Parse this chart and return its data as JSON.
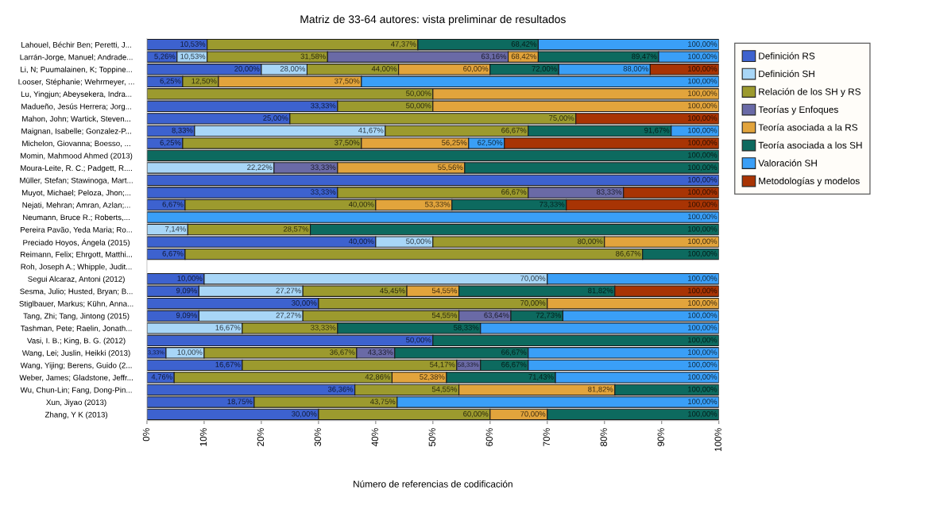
{
  "chart_data": {
    "type": "bar",
    "orientation": "horizontal",
    "title": "Matriz de 33-64 autores: vista preliminar de resultados",
    "xlabel": "Número de referencias de codificación",
    "categories": [
      "Lahouel, Béchir Ben; Peretti, J...",
      "Larrán-Jorge, Manuel; Andrade...",
      "Li, N; Puumalainen, K; Toppine...",
      "Looser, Stéphanie; Wehrmeyer, ...",
      "Lu, Yingjun; Abeysekera, Indra...",
      "Madueño, Jesús Herrera; Jorg...",
      "Mahon, John; Wartick, Steven...",
      "Maignan, Isabelle; Gonzalez-P...",
      "Michelon, Giovanna; Boesso, ...",
      "Momin, Mahmood Ahmed (2013)",
      "Moura-Leite, R. C.; Padgett, R....",
      "Müller, Stefan; Stawinoga, Mart...",
      "Muyot, Michael; Peloza, Jhon;...",
      "Nejati, Mehran; Amran, Azlan;...",
      "Neumann, Bruce R.; Roberts,...",
      "Pereira Pavão, Yeda Maria; Ro...",
      "Preciado Hoyos, Ángela (2015)",
      "Reimann, Felix; Ehrgott, Matthi...",
      "Roh, Joseph A.; Whipple, Judit...",
      "Segui Alcaraz, Antoni (2012)",
      "Sesma, Julio; Husted, Bryan; B...",
      "Stiglbauer, Markus; Kühn, Anna...",
      "Tang, Zhi; Tang, Jintong (2015)",
      "Tashman, Pete; Raelin, Jonath...",
      "Vasi, I. B.; King, B. G. (2012)",
      "Wang, Lei; Juslin, Heikki (2013)",
      "Wang, Yijing; Berens, Guido (2...",
      "Weber, James; Gladstone, Jeffr...",
      "Wu, Chun-Lin; Fang, Dong-Pin...",
      "Xun, Jiyao (2013)",
      "Zhang, Y K (2013)"
    ],
    "series": [
      {
        "name": "Definición RS",
        "color": "#3d62cf",
        "values": [
          10.53,
          5.26,
          20,
          6.25,
          null,
          33.33,
          25,
          8.33,
          6.25,
          null,
          null,
          100,
          33.33,
          6.67,
          null,
          null,
          40,
          6.67,
          null,
          10,
          9.09,
          30,
          9.09,
          null,
          50,
          3.33,
          16.67,
          4.76,
          36.36,
          18.75,
          30
        ],
        "base": [
          0,
          0,
          0,
          0,
          null,
          0,
          0,
          0,
          0,
          null,
          null,
          0,
          0,
          0,
          null,
          null,
          0,
          0,
          null,
          0,
          0,
          0,
          0,
          null,
          0,
          0,
          0,
          0,
          0,
          0,
          0
        ],
        "value_labels": [
          "10,53%",
          "5,26%",
          "20,00%",
          "6,25%",
          null,
          "33,33%",
          "25,00%",
          "8,33%",
          "6,25%",
          null,
          null,
          "100,00%",
          "33,33%",
          "6,67%",
          null,
          null,
          "40,00%",
          "6,67%",
          null,
          "10,00%",
          "9,09%",
          "30,00%",
          "9,09%",
          null,
          "50,00%",
          "3,33%",
          "16,67%",
          "4,76%",
          "36,36%",
          "18,75%",
          "30,00%"
        ]
      },
      {
        "name": "Definición SH",
        "color": "#a8d6f7",
        "values": [
          null,
          5.27,
          8,
          null,
          null,
          null,
          null,
          33.34,
          null,
          null,
          22.22,
          null,
          null,
          null,
          null,
          7.14,
          10,
          null,
          null,
          60,
          18.18,
          null,
          18.18,
          16.67,
          null,
          6.67,
          null,
          null,
          null,
          null,
          null
        ],
        "base": [
          null,
          5.26,
          20,
          null,
          null,
          null,
          null,
          8.33,
          null,
          null,
          0,
          null,
          null,
          null,
          null,
          0,
          40,
          null,
          null,
          10,
          9.09,
          null,
          9.09,
          0,
          null,
          3.33,
          null,
          null,
          null,
          null,
          null
        ],
        "value_labels": [
          null,
          "10,53%",
          "28,00%",
          null,
          null,
          null,
          null,
          "41,67%",
          null,
          null,
          "22,22%",
          null,
          null,
          null,
          null,
          "7,14%",
          "50,00%",
          null,
          null,
          "70,00%",
          "27,27%",
          null,
          "27,27%",
          "16,67%",
          null,
          "10,00%",
          null,
          null,
          null,
          null,
          null
        ]
      },
      {
        "name": "Relación de los SH y RS",
        "color": "#9c9a2e",
        "values": [
          36.84,
          21.05,
          16,
          6.25,
          50,
          16.67,
          50,
          25,
          31.25,
          null,
          null,
          null,
          33.34,
          33.33,
          null,
          21.43,
          30,
          80,
          null,
          null,
          18.18,
          40,
          27.28,
          16.66,
          null,
          26.67,
          37.5,
          38.1,
          18.19,
          25,
          30
        ],
        "base": [
          10.53,
          10.53,
          28,
          6.25,
          0,
          33.33,
          25,
          41.67,
          6.25,
          null,
          null,
          null,
          33.33,
          6.67,
          null,
          7.14,
          50,
          6.67,
          null,
          null,
          27.27,
          30,
          27.27,
          16.67,
          null,
          10,
          16.67,
          4.76,
          36.36,
          18.75,
          30
        ],
        "value_labels": [
          "47,37%",
          "31,58%",
          "44,00%",
          "12,50%",
          "50,00%",
          "50,00%",
          "75,00%",
          "66,67%",
          "37,50%",
          null,
          null,
          null,
          "66,67%",
          "40,00%",
          null,
          "28,57%",
          "80,00%",
          "86,67%",
          null,
          null,
          "45,45%",
          "70,00%",
          "54,55%",
          "33,33%",
          null,
          "36,67%",
          "54,17%",
          "42,86%",
          "54,55%",
          "43,75%",
          "60,00%"
        ]
      },
      {
        "name": "Teorías y Enfoques",
        "color": "#6a6aa6",
        "values": [
          null,
          31.58,
          null,
          null,
          null,
          null,
          null,
          null,
          null,
          null,
          11.11,
          null,
          16.66,
          null,
          null,
          null,
          null,
          null,
          null,
          null,
          null,
          null,
          9.09,
          null,
          null,
          6.66,
          4.16,
          null,
          null,
          null,
          null
        ],
        "base": [
          null,
          31.58,
          null,
          null,
          null,
          null,
          null,
          null,
          null,
          null,
          22.22,
          null,
          66.67,
          null,
          null,
          null,
          null,
          null,
          null,
          null,
          null,
          null,
          54.55,
          null,
          null,
          36.67,
          54.17,
          null,
          null,
          null,
          null
        ],
        "value_labels": [
          null,
          "63,16%",
          null,
          null,
          null,
          null,
          null,
          null,
          null,
          null,
          "33,33%",
          null,
          "83,33%",
          null,
          null,
          null,
          null,
          null,
          null,
          null,
          null,
          null,
          "63,64%",
          null,
          null,
          "43,33%",
          "58,33%",
          null,
          null,
          null,
          null
        ]
      },
      {
        "name": "Teoría asociada a la RS",
        "color": "#e2a43c",
        "values": [
          null,
          5.26,
          16,
          25,
          50,
          50,
          null,
          null,
          18.75,
          null,
          22.23,
          null,
          null,
          13.33,
          null,
          null,
          20,
          null,
          null,
          null,
          9.1,
          30,
          null,
          null,
          null,
          null,
          null,
          9.52,
          27.27,
          null,
          10
        ],
        "base": [
          null,
          63.16,
          44,
          12.5,
          50,
          50,
          null,
          null,
          37.5,
          null,
          33.33,
          null,
          null,
          40,
          null,
          null,
          80,
          null,
          null,
          null,
          45.45,
          70,
          null,
          null,
          null,
          null,
          null,
          42.86,
          54.55,
          null,
          60
        ],
        "value_labels": [
          null,
          "68,42%",
          "60,00%",
          "37,50%",
          "100,00%",
          "100,00%",
          null,
          null,
          "56,25%",
          null,
          "55,56%",
          null,
          null,
          "53,33%",
          null,
          null,
          "100,00%",
          null,
          null,
          null,
          "54,55%",
          "100,00%",
          null,
          null,
          null,
          null,
          null,
          "52,38%",
          "81,82%",
          null,
          "70,00%"
        ]
      },
      {
        "name": "Teoría asociada a los SH",
        "color": "#0d6a5f",
        "values": [
          21.05,
          21.05,
          12,
          null,
          null,
          null,
          null,
          25,
          null,
          100,
          44.44,
          null,
          null,
          20,
          null,
          71.43,
          null,
          13.33,
          null,
          null,
          27.27,
          null,
          9.09,
          25,
          50,
          23.34,
          8.34,
          19.05,
          18.18,
          null,
          30
        ],
        "base": [
          47.37,
          68.42,
          60,
          null,
          null,
          null,
          null,
          66.67,
          null,
          0,
          55.56,
          null,
          null,
          53.33,
          null,
          28.57,
          null,
          86.67,
          null,
          null,
          54.55,
          null,
          63.64,
          33.33,
          50,
          43.33,
          58.33,
          52.38,
          81.82,
          null,
          70
        ],
        "value_labels": [
          "68,42%",
          "89,47%",
          "72,00%",
          null,
          null,
          null,
          null,
          "91,67%",
          null,
          "100,00%",
          "100,00%",
          null,
          null,
          "73,33%",
          null,
          "100,00%",
          null,
          "100,00%",
          null,
          null,
          "81,82%",
          null,
          "72,73%",
          "58,33%",
          "100,00%",
          "66,67%",
          "66,67%",
          "71,43%",
          "100,00%",
          null,
          "100,00%"
        ]
      },
      {
        "name": "Valoración SH",
        "color": "#3a9ff7",
        "values": [
          31.58,
          10.53,
          16,
          62.5,
          null,
          null,
          null,
          8.33,
          6.25,
          null,
          null,
          null,
          null,
          null,
          100,
          null,
          null,
          null,
          null,
          30,
          null,
          null,
          27.27,
          41.67,
          null,
          33.33,
          33.33,
          28.57,
          null,
          56.25,
          null
        ],
        "base": [
          68.42,
          89.47,
          72,
          37.5,
          null,
          null,
          null,
          91.67,
          56.25,
          null,
          null,
          null,
          null,
          null,
          0,
          null,
          null,
          null,
          null,
          70,
          null,
          null,
          72.73,
          58.33,
          null,
          66.67,
          66.67,
          71.43,
          null,
          43.75,
          null
        ],
        "value_labels": [
          "100,00%",
          "100,00%",
          "88,00%",
          "100,00%",
          null,
          null,
          null,
          "100,00%",
          "62,50%",
          null,
          null,
          null,
          null,
          null,
          "100,00%",
          null,
          null,
          null,
          null,
          "100,00%",
          null,
          null,
          "100,00%",
          "100,00%",
          null,
          "100,00%",
          "100,00%",
          "100,00%",
          null,
          "100,00%",
          null
        ]
      },
      {
        "name": "Metodologías y modelos",
        "color": "#a83404",
        "values": [
          null,
          null,
          12,
          null,
          null,
          null,
          25,
          null,
          37.5,
          null,
          null,
          null,
          16.67,
          26.67,
          null,
          null,
          null,
          null,
          null,
          null,
          18.18,
          null,
          null,
          null,
          null,
          null,
          null,
          null,
          null,
          null,
          null
        ],
        "base": [
          null,
          null,
          88,
          null,
          null,
          null,
          75,
          null,
          62.5,
          null,
          null,
          null,
          83.33,
          73.33,
          null,
          null,
          null,
          null,
          null,
          null,
          81.82,
          null,
          null,
          null,
          null,
          null,
          null,
          null,
          null,
          null,
          null
        ],
        "value_labels": [
          null,
          null,
          "100,00%",
          null,
          null,
          null,
          "100,00%",
          null,
          "100,00%",
          null,
          null,
          null,
          "100,00%",
          "100,00%",
          null,
          null,
          null,
          null,
          null,
          null,
          "100,00%",
          null,
          null,
          null,
          null,
          null,
          null,
          null,
          null,
          null,
          null
        ]
      }
    ],
    "xlim": [
      0,
      100
    ],
    "xticks": [
      {
        "value": 0,
        "label": "0%"
      },
      {
        "value": 10,
        "label": "10%"
      },
      {
        "value": 20,
        "label": "20%"
      },
      {
        "value": 30,
        "label": "30%"
      },
      {
        "value": 40,
        "label": "40%"
      },
      {
        "value": 50,
        "label": "50%"
      },
      {
        "value": 60,
        "label": "60%"
      },
      {
        "value": 70,
        "label": "70%"
      },
      {
        "value": 80,
        "label": "80%"
      },
      {
        "value": 90,
        "label": "90%"
      },
      {
        "value": 100,
        "label": "100%"
      }
    ],
    "legend": "top right"
  }
}
